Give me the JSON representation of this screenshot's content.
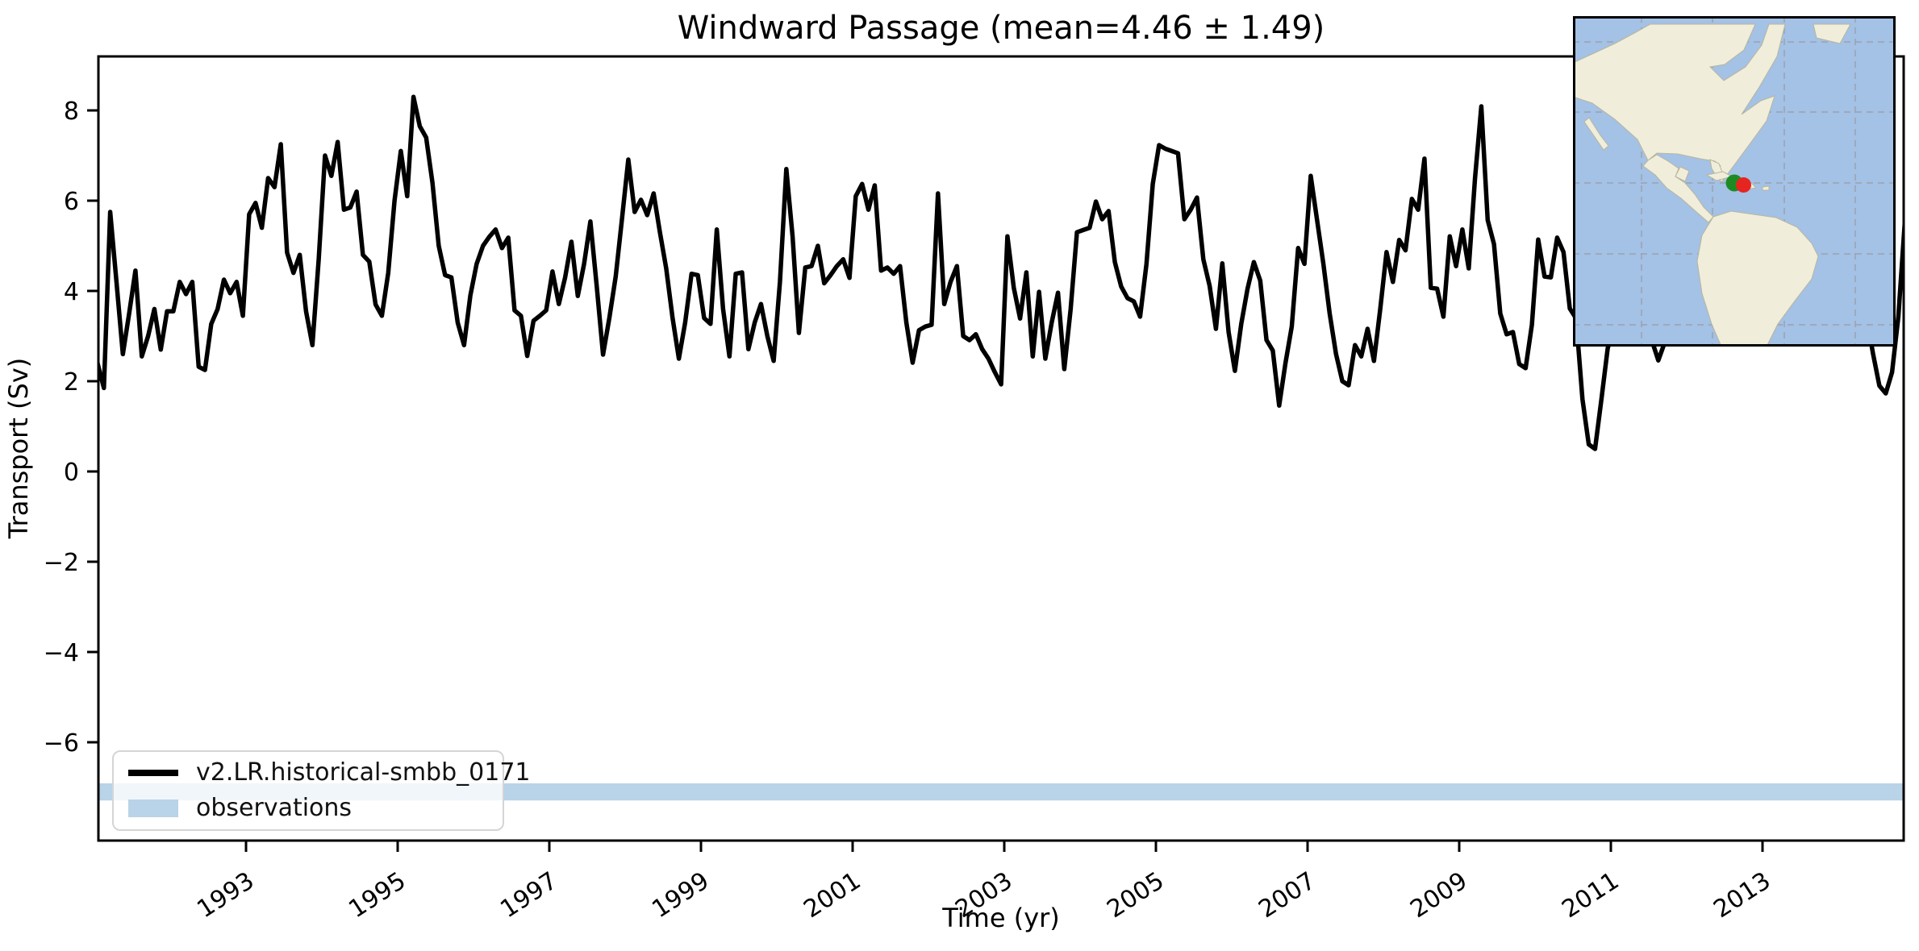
{
  "title": "Windward Passage (mean=4.46 ± 1.49)",
  "xlabel": "Time (yr)",
  "ylabel": "Transport (Sv)",
  "legend": {
    "items": [
      {
        "label": "v2.LR.historical-smbb_0171",
        "swatch": "thick-black-line"
      },
      {
        "label": "observations",
        "swatch": "light-blue-band"
      }
    ]
  },
  "colors": {
    "line": "#000000",
    "band": "#b9d3e8",
    "map_ocean": "#a4c1e6",
    "map_land": "#f0eedb",
    "marker_green": "#1e8b22",
    "marker_red": "#e62520"
  },
  "axis": {
    "x_ticks": [
      1993,
      1995,
      1997,
      1999,
      2001,
      2003,
      2005,
      2007,
      2009,
      2011,
      2013
    ],
    "y_ticks": [
      8,
      6,
      4,
      2,
      0,
      -2,
      -4,
      -6
    ],
    "x_range": [
      1991.0,
      2014.9
    ],
    "y_range": [
      -8.2,
      9.2
    ]
  },
  "inset_map": {
    "region": "Americas overview with dashed graticule",
    "marker": "green and red dots at the Windward Passage (between Cuba and Hispaniola)"
  },
  "chart_data": {
    "type": "line",
    "title": "Windward Passage (mean=4.46 ± 1.49)",
    "xlabel": "Time (yr)",
    "ylabel": "Transport (Sv)",
    "xlim": [
      1991.0,
      2014.9
    ],
    "ylim": [
      -8.2,
      9.2
    ],
    "grid": false,
    "legend_position": "lower left",
    "mean": 4.46,
    "std": 1.49,
    "observations_band": {
      "label": "observations",
      "min": -7.29,
      "max": -6.91
    },
    "series": [
      {
        "name": "v2.LR.historical-smbb_0171",
        "frequency": "monthly",
        "start_year": 1991,
        "end_year": 2014,
        "values": [
          2.4,
          1.85,
          5.75,
          4.2,
          2.6,
          3.5,
          4.45,
          2.55,
          3.0,
          3.6,
          2.7,
          3.55,
          3.55,
          4.2,
          3.93,
          4.2,
          2.32,
          2.25,
          3.27,
          3.6,
          4.25,
          3.95,
          4.2,
          3.45,
          5.7,
          5.95,
          5.4,
          6.5,
          6.3,
          7.25,
          4.85,
          4.4,
          4.8,
          3.55,
          2.8,
          4.7,
          7.0,
          6.55,
          7.3,
          5.8,
          5.85,
          6.2,
          4.8,
          4.65,
          3.7,
          3.45,
          4.4,
          6.0,
          7.1,
          6.1,
          8.3,
          7.65,
          7.4,
          6.4,
          5.0,
          4.35,
          4.3,
          3.3,
          2.8,
          3.9,
          4.6,
          5.0,
          5.2,
          5.36,
          4.95,
          5.18,
          3.57,
          3.45,
          2.56,
          3.34,
          3.45,
          3.57,
          4.43,
          3.71,
          4.3,
          5.09,
          3.89,
          4.6,
          5.54,
          4.1,
          2.59,
          3.4,
          4.32,
          5.6,
          6.91,
          5.75,
          6.02,
          5.68,
          6.16,
          5.3,
          4.5,
          3.4,
          2.5,
          3.3,
          4.38,
          4.35,
          3.4,
          3.27,
          5.36,
          3.6,
          2.55,
          4.38,
          4.41,
          2.71,
          3.3,
          3.71,
          3.0,
          2.45,
          4.2,
          6.7,
          5.2,
          3.07,
          4.52,
          4.55,
          5.0,
          4.17,
          4.35,
          4.55,
          4.7,
          4.29,
          6.1,
          6.37,
          5.8,
          6.34,
          4.45,
          4.52,
          4.38,
          4.55,
          3.3,
          2.41,
          3.13,
          3.21,
          3.25,
          6.16,
          3.71,
          4.2,
          4.55,
          3.0,
          2.91,
          3.04,
          2.71,
          2.5,
          2.2,
          1.93,
          5.21,
          4.07,
          3.39,
          4.41,
          2.55,
          3.98,
          2.5,
          3.3,
          3.96,
          2.27,
          3.6,
          5.3,
          5.35,
          5.4,
          5.98,
          5.59,
          5.77,
          4.64,
          4.1,
          3.84,
          3.77,
          3.43,
          4.6,
          6.37,
          7.23,
          7.15,
          7.1,
          7.05,
          5.59,
          5.8,
          6.07,
          4.7,
          4.11,
          3.16,
          4.61,
          3.09,
          2.23,
          3.27,
          4.05,
          4.64,
          4.23,
          2.91,
          2.68,
          1.46,
          2.4,
          3.21,
          4.95,
          4.6,
          6.55,
          5.57,
          4.6,
          3.5,
          2.6,
          2.0,
          1.91,
          2.8,
          2.55,
          3.16,
          2.45,
          3.6,
          4.86,
          4.2,
          5.13,
          4.9,
          6.04,
          5.8,
          6.93,
          4.07,
          4.05,
          3.43,
          5.21,
          4.55,
          5.36,
          4.5,
          6.5,
          8.09,
          5.57,
          5.04,
          3.5,
          3.04,
          3.09,
          2.38,
          2.29,
          3.25,
          5.14,
          4.32,
          4.3,
          5.18,
          4.86,
          3.61,
          3.39,
          1.6,
          0.6,
          0.5,
          1.6,
          2.73,
          3.2,
          4.0,
          4.6,
          4.2,
          3.6,
          3.1,
          2.9,
          2.46,
          2.85,
          3.6,
          4.3,
          4.9,
          4.6,
          4.0,
          4.7,
          5.4,
          5.0,
          4.3,
          3.7,
          3.3,
          3.9,
          4.6,
          5.2,
          4.5,
          4.0,
          4.7,
          5.4,
          4.9,
          4.2,
          3.5,
          4.1,
          4.8,
          5.3,
          4.6,
          3.9,
          3.4,
          3.9,
          4.4,
          4.9,
          4.2,
          3.4,
          2.6,
          1.9,
          1.73,
          2.2,
          3.43,
          5.5,
          7.8
        ]
      }
    ]
  }
}
